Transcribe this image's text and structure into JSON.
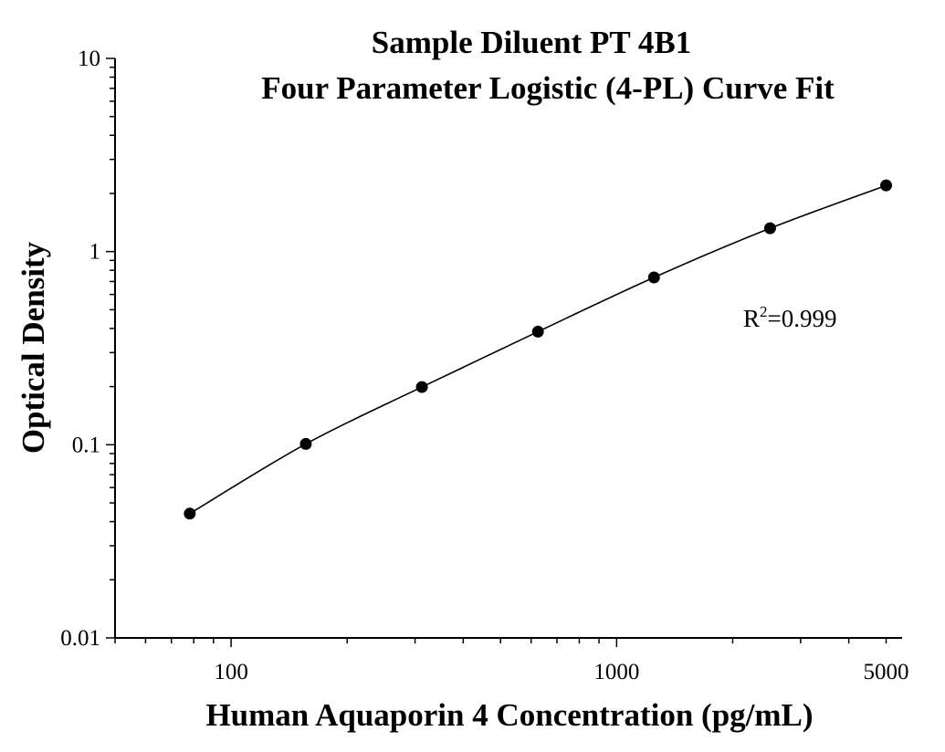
{
  "chart_data": {
    "type": "scatter",
    "title": "Sample Diluent PT 4B1",
    "subtitle": "Four Parameter Logistic (4-PL) Curve Fit",
    "xlabel": "Human Aquaporin 4 Concentration (pg/mL)",
    "ylabel": "Optical Density",
    "x_scale": "log",
    "y_scale": "log",
    "xlim": [
      50,
      5500
    ],
    "ylim": [
      0.01,
      10
    ],
    "x_ticks": [
      {
        "value": 100,
        "label": "100"
      },
      {
        "value": 1000,
        "label": "1000"
      },
      {
        "value": 5000,
        "label": "5000"
      }
    ],
    "y_ticks": [
      {
        "value": 0.01,
        "label": "0.01"
      },
      {
        "value": 0.1,
        "label": "0.1"
      },
      {
        "value": 1,
        "label": "1"
      },
      {
        "value": 10,
        "label": "10"
      }
    ],
    "grid": false,
    "series": [
      {
        "x": [
          78.125,
          156.25,
          312.5,
          625,
          1250,
          2500,
          5000
        ],
        "y": [
          0.044,
          0.101,
          0.199,
          0.385,
          0.735,
          1.32,
          2.2
        ],
        "marker": "circle",
        "color": "#000000",
        "fit": "4-PL"
      }
    ],
    "annotations": [
      {
        "base": "R",
        "sup": "2",
        "rest": "=0.999"
      }
    ]
  }
}
